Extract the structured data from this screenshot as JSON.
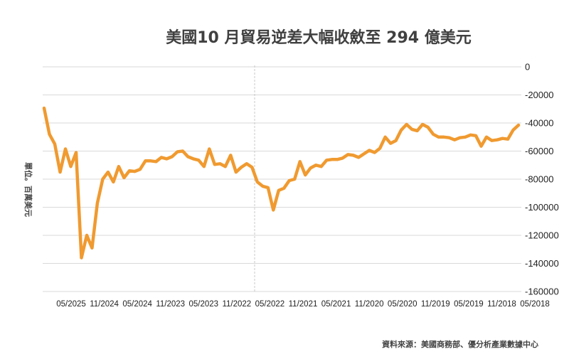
{
  "chart_data": {
    "type": "line",
    "title": "美國10 月貿易逆差大幅收斂至 294 億美元",
    "ylabel": "單位。百萬美元",
    "source": "資料來源：美國商務部、優分析產業數據中心",
    "ylim": [
      -160000,
      0
    ],
    "yticks": [
      0,
      -20000,
      -40000,
      -60000,
      -80000,
      -100000,
      -120000,
      -140000,
      -160000
    ],
    "ytick_labels": [
      "0",
      "-20000",
      "-40000",
      "-60000",
      "-80000",
      "-100000",
      "-120000",
      "-140000",
      "-160000"
    ],
    "xtick_labels": [
      "05/2025",
      "11/2024",
      "05/2024",
      "11/2023",
      "05/2023",
      "11/2022",
      "05/2022",
      "11/2021",
      "05/2021",
      "11/2020",
      "05/2020",
      "11/2019",
      "05/2019",
      "11/2018",
      "05/2018"
    ],
    "grid": "horizontal",
    "color": "#f09a30",
    "series": [
      {
        "values": [
          -29400,
          -48000,
          -55000,
          -75000,
          -58500,
          -71000,
          -61000,
          -136000,
          -120000,
          -129000,
          -97000,
          -80000,
          -75000,
          -82000,
          -71000,
          -79000,
          -74000,
          -74500,
          -73000,
          -67000,
          -67000,
          -67500,
          -64500,
          -65500,
          -64000,
          -60500,
          -60000,
          -64000,
          -65500,
          -66500,
          -71000,
          -58500,
          -69500,
          -69000,
          -71000,
          -63000,
          -75000,
          -71500,
          -69000,
          -71500,
          -82000,
          -85000,
          -86000,
          -102000,
          -88000,
          -86500,
          -81000,
          -80000,
          -67500,
          -77000,
          -72000,
          -70000,
          -71000,
          -66500,
          -66000,
          -66000,
          -65000,
          -62500,
          -63000,
          -64500,
          -62000,
          -59500,
          -61000,
          -58000,
          -50000,
          -54500,
          -52500,
          -45000,
          -41000,
          -44500,
          -45500,
          -41000,
          -43000,
          -48000,
          -50000,
          -50000,
          -50500,
          -52000,
          -50500,
          -50000,
          -48500,
          -49000,
          -56500,
          -50000,
          -52500,
          -52000,
          -51000,
          -51500,
          -45000,
          -41500
        ]
      }
    ]
  }
}
